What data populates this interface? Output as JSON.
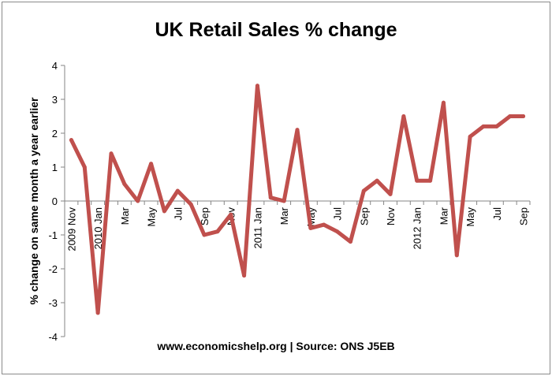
{
  "chart_data": {
    "type": "line",
    "title": "UK Retail Sales % change",
    "xlabel": "",
    "ylabel": "% change on same month a year earlier",
    "source": "www.economicshelp.org | Source: ONS J5EB",
    "ylim": [
      -4,
      4
    ],
    "yticks": [
      4,
      3,
      2,
      1,
      0,
      -1,
      -2,
      -3,
      -4
    ],
    "grid": false,
    "legend": "none",
    "line_color": "#c0504d",
    "x": [
      "2009 Nov",
      "Dec",
      "2010 Jan",
      "Feb",
      "Mar",
      "Apr",
      "May",
      "Jun",
      "Jul",
      "Aug",
      "Sep",
      "Oct",
      "Nov",
      "Dec",
      "2011 Jan",
      "Feb",
      "Mar",
      "Apr",
      "May",
      "Jun",
      "Jul",
      "Aug",
      "Sep",
      "Oct",
      "Nov",
      "Dec",
      "2012 Jan",
      "Feb",
      "Mar",
      "Apr",
      "May",
      "Jun",
      "Jul",
      "Aug",
      "Sep"
    ],
    "x_tick_labels": [
      "2009 Nov",
      "",
      "2010 Jan",
      "",
      "Mar",
      "",
      "May",
      "",
      "Jul",
      "",
      "Sep",
      "",
      "Nov",
      "",
      "2011 Jan",
      "",
      "Mar",
      "",
      "May",
      "",
      "Jul",
      "",
      "Sep",
      "",
      "Nov",
      "",
      "2012 Jan",
      "",
      "Mar",
      "",
      "May",
      "",
      "Jul",
      "",
      "Sep"
    ],
    "series": [
      {
        "values": [
          1.8,
          1.0,
          -3.3,
          1.4,
          0.5,
          0.0,
          1.1,
          -0.3,
          0.3,
          -0.1,
          -1.0,
          -0.9,
          -0.4,
          -2.2,
          3.4,
          0.1,
          0.0,
          2.1,
          -0.8,
          -0.7,
          -0.9,
          -1.2,
          0.3,
          0.6,
          0.2,
          2.5,
          0.6,
          0.6,
          2.9,
          -1.6,
          1.9,
          2.2,
          2.2,
          2.5,
          2.5
        ]
      }
    ]
  }
}
